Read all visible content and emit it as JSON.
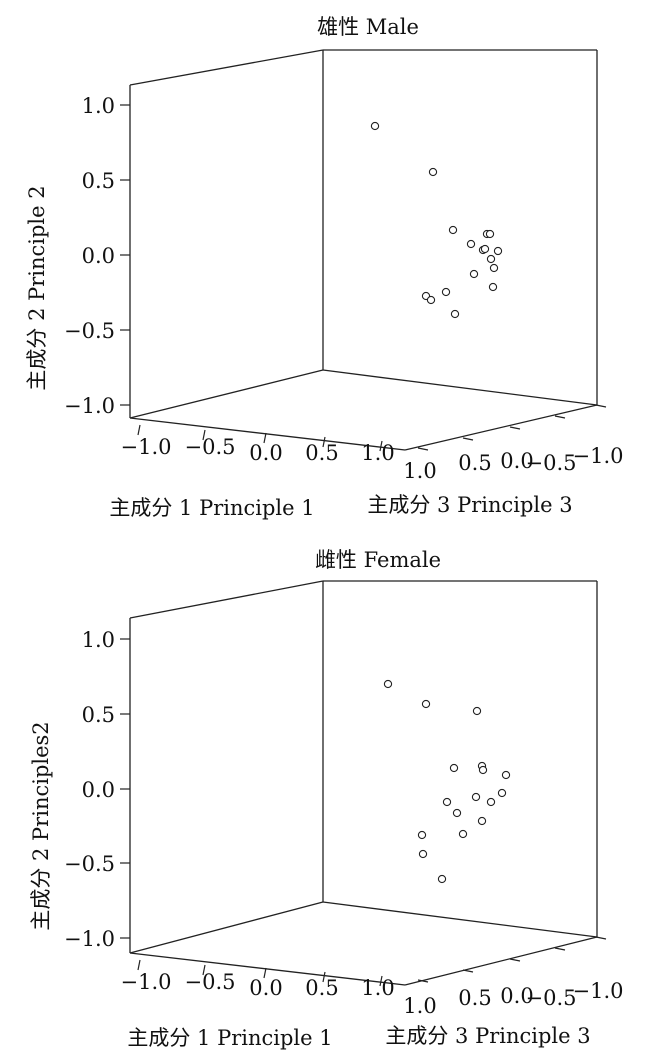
{
  "chart_data": [
    {
      "type": "scatter",
      "title": "雄性 Male",
      "xlabel": "主成分 1 Principle 1",
      "ylabel": "主成分 2 Principle 2",
      "zlabel": "主成分 3 Principle 3",
      "xlim": [
        -1.0,
        1.0
      ],
      "ylim": [
        -1.0,
        1.0
      ],
      "zlim": [
        1.0,
        -1.0
      ],
      "x_ticks": [
        "−1.0",
        "−0.5",
        "0.0",
        "0.5",
        "1.0"
      ],
      "y_ticks": [
        "1.0",
        "0.5",
        "0.0",
        "−0.5",
        "−1.0"
      ],
      "z_ticks": [
        "1.0",
        "0.5",
        "0.0",
        "−0.5",
        "−1.0"
      ],
      "points_screen_estimate": [
        [
          0.15,
          0.85
        ],
        [
          0.35,
          0.55
        ],
        [
          0.45,
          0.15
        ],
        [
          0.5,
          0.05
        ],
        [
          0.55,
          0.01
        ],
        [
          0.6,
          0.12
        ],
        [
          0.62,
          0.12
        ],
        [
          0.65,
          0.0
        ],
        [
          0.58,
          0.02
        ],
        [
          0.6,
          -0.05
        ],
        [
          0.62,
          -0.1
        ],
        [
          0.5,
          -0.15
        ],
        [
          0.4,
          -0.28
        ],
        [
          0.3,
          -0.3
        ],
        [
          0.32,
          -0.34
        ],
        [
          0.45,
          -0.4
        ],
        [
          0.6,
          -0.22
        ]
      ]
    },
    {
      "type": "scatter",
      "title": "雌性 Female",
      "xlabel": "主成分 1 Principle 1",
      "ylabel": "主成分 2 Principles2",
      "zlabel": "主成分 3 Principle 3",
      "xlim": [
        -1.0,
        1.0
      ],
      "ylim": [
        -1.0,
        1.0
      ],
      "zlim": [
        1.0,
        -1.0
      ],
      "x_ticks": [
        "−1.0",
        "−0.5",
        "0.0",
        "0.5",
        "1.0"
      ],
      "y_ticks": [
        "1.0",
        "0.5",
        "0.0",
        "−0.5",
        "−1.0"
      ],
      "z_ticks": [
        "1.0",
        "0.5",
        "0.0",
        "−0.5",
        "−1.0"
      ],
      "points_screen_estimate": [
        [
          0.1,
          0.68
        ],
        [
          0.3,
          0.55
        ],
        [
          0.55,
          0.5
        ],
        [
          0.38,
          0.13
        ],
        [
          0.55,
          0.13
        ],
        [
          0.56,
          0.1
        ],
        [
          0.68,
          0.06
        ],
        [
          0.62,
          -0.05
        ],
        [
          0.55,
          -0.02
        ],
        [
          0.6,
          -0.1
        ],
        [
          0.35,
          -0.1
        ],
        [
          0.42,
          -0.18
        ],
        [
          0.5,
          -0.25
        ],
        [
          0.45,
          -0.32
        ],
        [
          0.28,
          -0.34
        ],
        [
          0.27,
          -0.46
        ],
        [
          0.36,
          -0.62
        ]
      ]
    }
  ]
}
